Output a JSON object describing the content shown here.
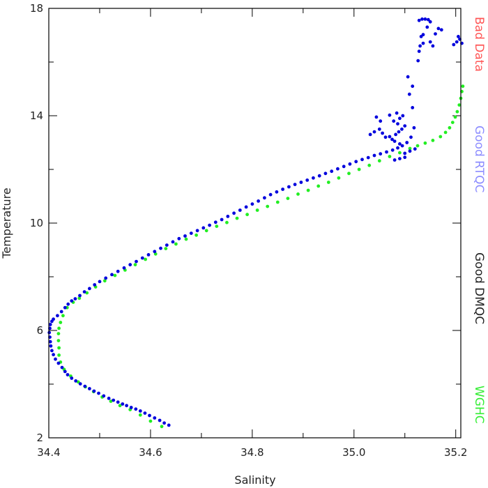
{
  "chart_data": {
    "type": "scatter",
    "title": "",
    "xlabel": "Salinity",
    "ylabel": "Temperature",
    "xlim": [
      34.4,
      35.21
    ],
    "ylim": [
      2,
      18
    ],
    "xticks": [
      {
        "value": 34.4,
        "label": "34.4"
      },
      {
        "value": 34.6,
        "label": "34.6"
      },
      {
        "value": 34.8,
        "label": "34.8"
      },
      {
        "value": 35.0,
        "label": "35.0"
      },
      {
        "value": 35.2,
        "label": "35.2"
      }
    ],
    "yticks": [
      {
        "value": 2,
        "label": "2"
      },
      {
        "value": 6,
        "label": "6"
      },
      {
        "value": 10,
        "label": "10"
      },
      {
        "value": 14,
        "label": "14"
      },
      {
        "value": 18,
        "label": "18"
      }
    ],
    "grid": false,
    "legend": [
      {
        "label": "Bad Data",
        "color": "#ff5555"
      },
      {
        "label": "Good RTQC",
        "color": "#8c8cff"
      },
      {
        "label": "Good DMQC",
        "color": "#222222"
      },
      {
        "label": "WGHC",
        "color": "#33ee33"
      }
    ],
    "legend_placement": "right, vertical text",
    "series": [
      {
        "color": "#0000dd",
        "points": [
          [
            34.636,
            2.47
          ],
          [
            34.627,
            2.55
          ],
          [
            34.618,
            2.65
          ],
          [
            34.608,
            2.74
          ],
          [
            34.598,
            2.83
          ],
          [
            34.589,
            2.92
          ],
          [
            34.58,
            3.0
          ],
          [
            34.571,
            3.07
          ],
          [
            34.562,
            3.13
          ],
          [
            34.553,
            3.2
          ],
          [
            34.545,
            3.26
          ],
          [
            34.536,
            3.33
          ],
          [
            34.527,
            3.4
          ],
          [
            34.518,
            3.47
          ],
          [
            34.508,
            3.56
          ],
          [
            34.498,
            3.66
          ],
          [
            34.489,
            3.74
          ],
          [
            34.48,
            3.83
          ],
          [
            34.471,
            3.92
          ],
          [
            34.462,
            4.01
          ],
          [
            34.453,
            4.12
          ],
          [
            34.445,
            4.22
          ],
          [
            34.437,
            4.35
          ],
          [
            34.432,
            4.47
          ],
          [
            34.426,
            4.62
          ],
          [
            34.419,
            4.78
          ],
          [
            34.413,
            4.93
          ],
          [
            34.409,
            5.1
          ],
          [
            34.406,
            5.25
          ],
          [
            34.404,
            5.42
          ],
          [
            34.403,
            5.58
          ],
          [
            34.402,
            5.75
          ],
          [
            34.401,
            5.92
          ],
          [
            34.402,
            6.08
          ],
          [
            34.403,
            6.22
          ],
          [
            34.406,
            6.34
          ],
          [
            34.409,
            6.42
          ],
          [
            34.417,
            6.55
          ],
          [
            34.425,
            6.7
          ],
          [
            34.432,
            6.85
          ],
          [
            34.438,
            6.98
          ],
          [
            34.445,
            7.1
          ],
          [
            34.452,
            7.18
          ],
          [
            34.461,
            7.3
          ],
          [
            34.47,
            7.44
          ],
          [
            34.48,
            7.56
          ],
          [
            34.49,
            7.7
          ],
          [
            34.5,
            7.82
          ],
          [
            34.512,
            7.95
          ],
          [
            34.524,
            8.08
          ],
          [
            34.536,
            8.2
          ],
          [
            34.548,
            8.33
          ],
          [
            34.56,
            8.45
          ],
          [
            34.572,
            8.57
          ],
          [
            34.584,
            8.7
          ],
          [
            34.596,
            8.82
          ],
          [
            34.608,
            8.94
          ],
          [
            34.62,
            9.06
          ],
          [
            34.632,
            9.18
          ],
          [
            34.644,
            9.3
          ],
          [
            34.656,
            9.42
          ],
          [
            34.668,
            9.52
          ],
          [
            34.68,
            9.62
          ],
          [
            34.692,
            9.72
          ],
          [
            34.704,
            9.82
          ],
          [
            34.716,
            9.92
          ],
          [
            34.728,
            10.03
          ],
          [
            34.74,
            10.13
          ],
          [
            34.752,
            10.25
          ],
          [
            34.764,
            10.37
          ],
          [
            34.776,
            10.48
          ],
          [
            34.788,
            10.6
          ],
          [
            34.8,
            10.71
          ],
          [
            34.812,
            10.82
          ],
          [
            34.824,
            10.94
          ],
          [
            34.836,
            11.06
          ],
          [
            34.848,
            11.16
          ],
          [
            34.86,
            11.26
          ],
          [
            34.872,
            11.35
          ],
          [
            34.884,
            11.44
          ],
          [
            34.896,
            11.52
          ],
          [
            34.908,
            11.6
          ],
          [
            34.92,
            11.68
          ],
          [
            34.932,
            11.76
          ],
          [
            34.944,
            11.85
          ],
          [
            34.956,
            11.93
          ],
          [
            34.968,
            12.02
          ],
          [
            34.98,
            12.11
          ],
          [
            34.992,
            12.2
          ],
          [
            35.004,
            12.29
          ],
          [
            35.016,
            12.37
          ],
          [
            35.028,
            12.44
          ],
          [
            35.04,
            12.52
          ],
          [
            35.052,
            12.58
          ],
          [
            35.064,
            12.65
          ],
          [
            35.076,
            12.72
          ],
          [
            35.086,
            12.8
          ],
          [
            35.095,
            12.88
          ],
          [
            35.104,
            13.0
          ],
          [
            35.112,
            13.2
          ],
          [
            35.118,
            13.55
          ],
          [
            35.1,
            12.6
          ],
          [
            35.11,
            12.68
          ],
          [
            35.12,
            12.76
          ],
          [
            35.09,
            12.95
          ],
          [
            35.08,
            13.05
          ],
          [
            35.075,
            13.12
          ],
          [
            35.07,
            13.22
          ],
          [
            35.082,
            13.3
          ],
          [
            35.088,
            13.4
          ],
          [
            35.094,
            13.5
          ],
          [
            35.1,
            13.62
          ],
          [
            35.086,
            13.7
          ],
          [
            35.078,
            13.8
          ],
          [
            35.09,
            13.9
          ],
          [
            35.096,
            14.0
          ],
          [
            35.084,
            14.1
          ],
          [
            35.07,
            14.02
          ],
          [
            35.062,
            13.2
          ],
          [
            35.056,
            13.35
          ],
          [
            35.05,
            13.5
          ],
          [
            35.04,
            13.4
          ],
          [
            35.032,
            13.3
          ],
          [
            35.044,
            13.95
          ],
          [
            35.052,
            13.8
          ],
          [
            35.1,
            12.45
          ],
          [
            35.09,
            12.4
          ],
          [
            35.08,
            12.35
          ],
          [
            35.115,
            14.3
          ],
          [
            35.109,
            14.8
          ],
          [
            35.106,
            15.45
          ],
          [
            35.115,
            15.1
          ],
          [
            35.126,
            16.05
          ],
          [
            35.128,
            16.4
          ],
          [
            35.13,
            16.6
          ],
          [
            35.132,
            16.95
          ],
          [
            35.136,
            17.02
          ],
          [
            35.128,
            17.55
          ],
          [
            35.134,
            17.6
          ],
          [
            35.14,
            17.6
          ],
          [
            35.146,
            17.58
          ],
          [
            35.15,
            17.5
          ],
          [
            35.144,
            17.3
          ],
          [
            35.15,
            16.75
          ],
          [
            35.155,
            16.6
          ],
          [
            35.16,
            17.05
          ],
          [
            35.166,
            17.25
          ],
          [
            35.172,
            17.2
          ],
          [
            35.196,
            16.65
          ],
          [
            35.202,
            16.75
          ],
          [
            35.208,
            16.85
          ],
          [
            35.212,
            16.7
          ],
          [
            35.205,
            16.95
          ],
          [
            35.136,
            16.7
          ]
        ]
      },
      {
        "color": "#22ee22",
        "points": [
          [
            34.622,
            2.42
          ],
          [
            34.6,
            2.62
          ],
          [
            34.58,
            2.85
          ],
          [
            34.56,
            3.05
          ],
          [
            34.54,
            3.2
          ],
          [
            34.522,
            3.36
          ],
          [
            34.505,
            3.52
          ],
          [
            34.488,
            3.72
          ],
          [
            34.472,
            3.9
          ],
          [
            34.458,
            4.08
          ],
          [
            34.443,
            4.3
          ],
          [
            34.43,
            4.55
          ],
          [
            34.423,
            4.82
          ],
          [
            34.42,
            5.08
          ],
          [
            34.42,
            5.35
          ],
          [
            34.419,
            5.62
          ],
          [
            34.419,
            5.88
          ],
          [
            34.42,
            6.08
          ],
          [
            34.423,
            6.3
          ],
          [
            34.428,
            6.55
          ],
          [
            34.436,
            6.85
          ],
          [
            34.448,
            7.05
          ],
          [
            34.46,
            7.2
          ],
          [
            34.475,
            7.4
          ],
          [
            34.492,
            7.62
          ],
          [
            34.51,
            7.85
          ],
          [
            34.53,
            8.05
          ],
          [
            34.55,
            8.25
          ],
          [
            34.57,
            8.45
          ],
          [
            34.59,
            8.65
          ],
          [
            34.61,
            8.85
          ],
          [
            34.63,
            9.05
          ],
          [
            34.65,
            9.22
          ],
          [
            34.67,
            9.4
          ],
          [
            34.69,
            9.55
          ],
          [
            34.71,
            9.72
          ],
          [
            34.73,
            9.88
          ],
          [
            34.75,
            10.02
          ],
          [
            34.77,
            10.18
          ],
          [
            34.79,
            10.32
          ],
          [
            34.81,
            10.48
          ],
          [
            34.83,
            10.62
          ],
          [
            34.85,
            10.78
          ],
          [
            34.87,
            10.92
          ],
          [
            34.89,
            11.08
          ],
          [
            34.91,
            11.22
          ],
          [
            34.93,
            11.38
          ],
          [
            34.95,
            11.52
          ],
          [
            34.97,
            11.68
          ],
          [
            34.99,
            11.85
          ],
          [
            35.01,
            12.0
          ],
          [
            35.03,
            12.15
          ],
          [
            35.05,
            12.32
          ],
          [
            35.07,
            12.48
          ],
          [
            35.09,
            12.62
          ],
          [
            35.11,
            12.78
          ],
          [
            35.125,
            12.88
          ],
          [
            35.14,
            12.98
          ],
          [
            35.155,
            13.08
          ],
          [
            35.17,
            13.22
          ],
          [
            35.18,
            13.38
          ],
          [
            35.188,
            13.55
          ],
          [
            35.194,
            13.75
          ],
          [
            35.199,
            13.95
          ],
          [
            35.203,
            14.15
          ],
          [
            35.207,
            14.4
          ],
          [
            35.21,
            14.65
          ],
          [
            35.212,
            14.9
          ],
          [
            35.214,
            15.1
          ]
        ]
      }
    ]
  }
}
